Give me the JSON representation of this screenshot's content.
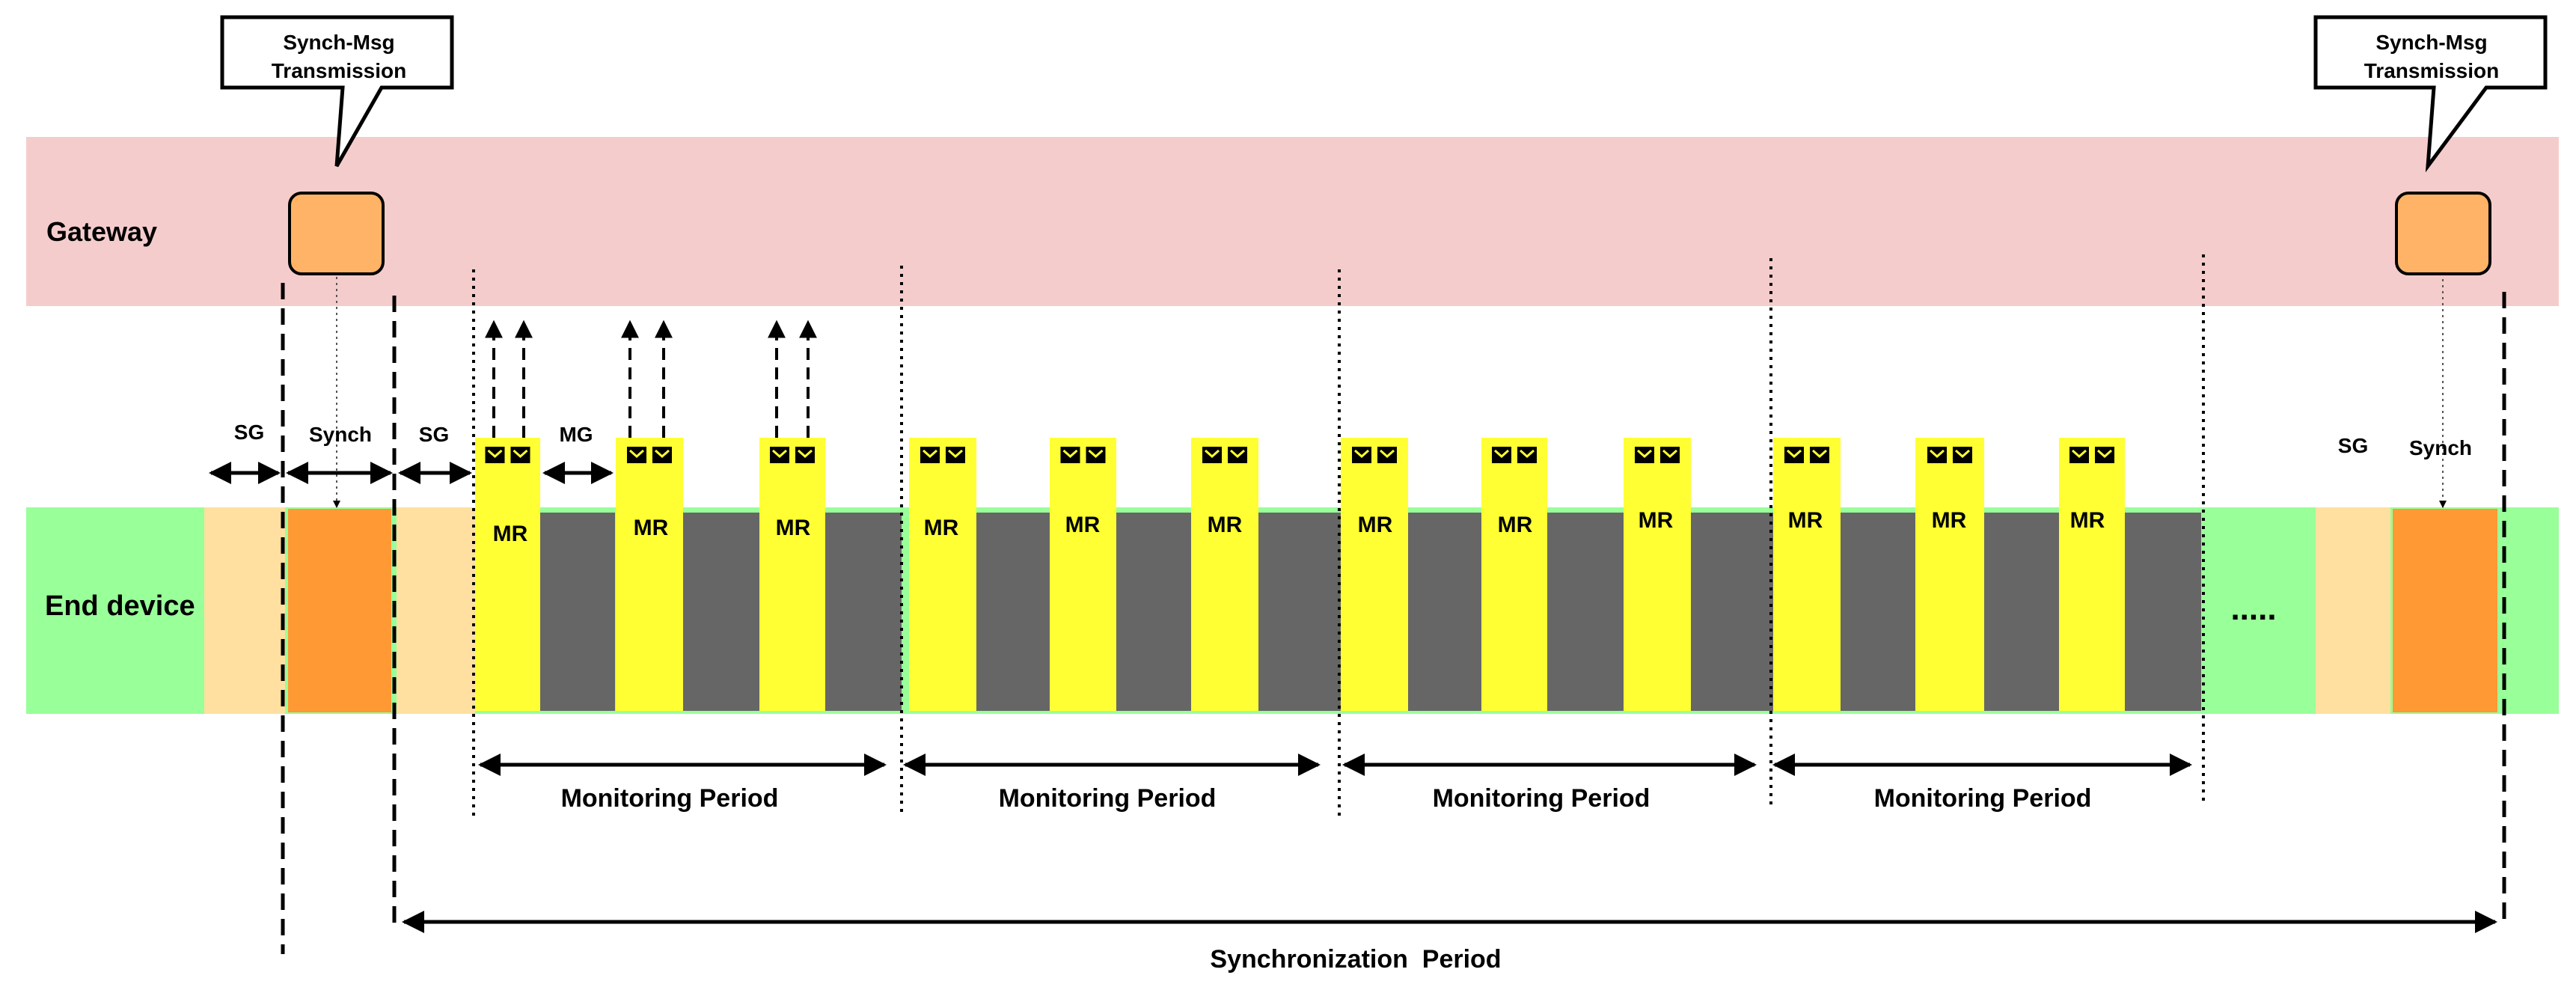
{
  "gateway": {
    "label": "Gateway"
  },
  "end_device": {
    "label": "End device"
  },
  "callouts": [
    {
      "line1": "Synch-Msg",
      "line2": "Transmission"
    },
    {
      "line1": "Synch-Msg",
      "line2": "Transmission"
    }
  ],
  "gaps": {
    "sg_label": "SG",
    "synch_label": "Synch",
    "mg_label": "MG"
  },
  "mr_label": "MR",
  "monitoring_period_label": "Monitoring Period",
  "synchronization_period_label": "Synchronization  Period",
  "ellipsis": ".....",
  "structure": {
    "monitoring_periods": 4,
    "mr_slots_per_period": 3,
    "uplink_arrows_first_period": 3
  },
  "colors": {
    "gateway_band": "#f5cccc",
    "end_device_band": "#99ff99",
    "synch_msg_box": "#ffb366",
    "synch_slot": "#ff9933",
    "guard_slot": "#ffe0a0",
    "mr_slot": "#ffff33",
    "sleep_slot": "#666666"
  }
}
